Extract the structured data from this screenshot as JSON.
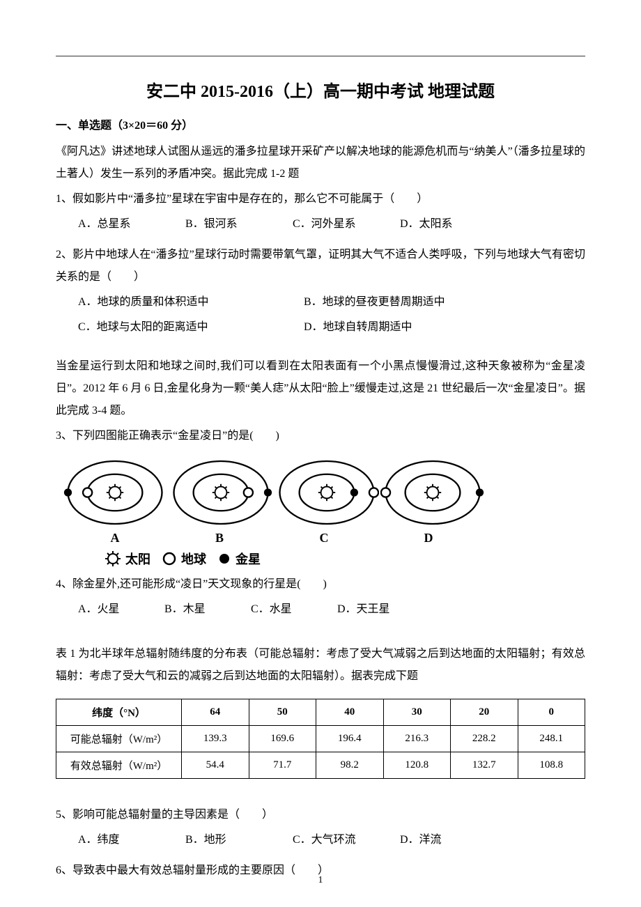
{
  "title": "安二中 2015-2016（上）高一期中考试 地理试题",
  "section1": {
    "header": "一、单选题（3×20＝60 分）",
    "intro1": "《阿凡达》讲述地球人试图从遥远的潘多拉星球开采矿产以解决地球的能源危机而与“纳美人”（潘多拉星球的土著人）发生一系列的矛盾冲突。据此完成 1-2 题",
    "q1": {
      "text": "1、假如影片中“潘多拉”星球在宇宙中是存在的，那么它不可能属于（　　）",
      "A": "A．总星系",
      "B": "B．银河系",
      "C": "C．河外星系",
      "D": "D．太阳系"
    },
    "q2": {
      "text": "2、影片中地球人在“潘多拉”星球行动时需要带氧气罩，证明其大气不适合人类呼吸，下列与地球大气有密切关系的是（　　）",
      "A": "A．地球的质量和体积适中",
      "B": "B．地球的昼夜更替周期适中",
      "C": "C．地球与太阳的距离适中",
      "D": "D．地球自转周期适中"
    },
    "intro2": "当金星运行到太阳和地球之间时,我们可以看到在太阳表面有一个小黑点慢慢滑过,这种天象被称为“金星凌日”。2012 年 6 月 6 日,金星化身为一颗“美人痣”从太阳“脸上”缓慢走过,这是 21 世纪最后一次“金星凌日”。据此完成 3-4 题。",
    "q3": {
      "text": "3、下列四图能正确表示“金星凌日”的是(　　)",
      "labels": {
        "A": "A",
        "B": "B",
        "C": "C",
        "D": "D"
      },
      "legend": {
        "sun": "太阳",
        "earth": "地球",
        "venus": "金星"
      }
    },
    "q4": {
      "text": "4、除金星外,还可能形成“凌日”天文现象的行星是(　　)",
      "A": "A．火星",
      "B": "B．木星",
      "C": "C．水星",
      "D": "D．天王星"
    },
    "intro3": "表 1 为北半球年总辐射随纬度的分布表（可能总辐射：考虑了受大气减弱之后到达地面的太阳辐射；有效总辐射：考虑了受大气和云的减弱之后到达地面的太阳辐射）。据表完成下题",
    "table": {
      "type": "table",
      "columns": [
        "纬度（°N）",
        "64",
        "50",
        "40",
        "30",
        "20",
        "0"
      ],
      "rows": [
        [
          "可能总辐射（W/m²）",
          "139.3",
          "169.6",
          "196.4",
          "216.3",
          "228.2",
          "248.1"
        ],
        [
          "有效总辐射（W/m²）",
          "54.4",
          "71.7",
          "98.2",
          "120.8",
          "132.7",
          "108.8"
        ]
      ],
      "border_color": "#000000",
      "background_color": "#ffffff"
    },
    "q5": {
      "text": "5、影响可能总辐射量的主导因素是（　　）",
      "A": "A．纬度",
      "B": "B．地形",
      "C": "C．大气环流",
      "D": "D．洋流"
    },
    "q6": {
      "text": "6、导致表中最大有效总辐射量形成的主要原因（　　）"
    }
  },
  "diagram": {
    "type": "flowchart",
    "stroke": "#000000",
    "stroke_width": 2,
    "background": "#ffffff"
  },
  "page_number": "1"
}
